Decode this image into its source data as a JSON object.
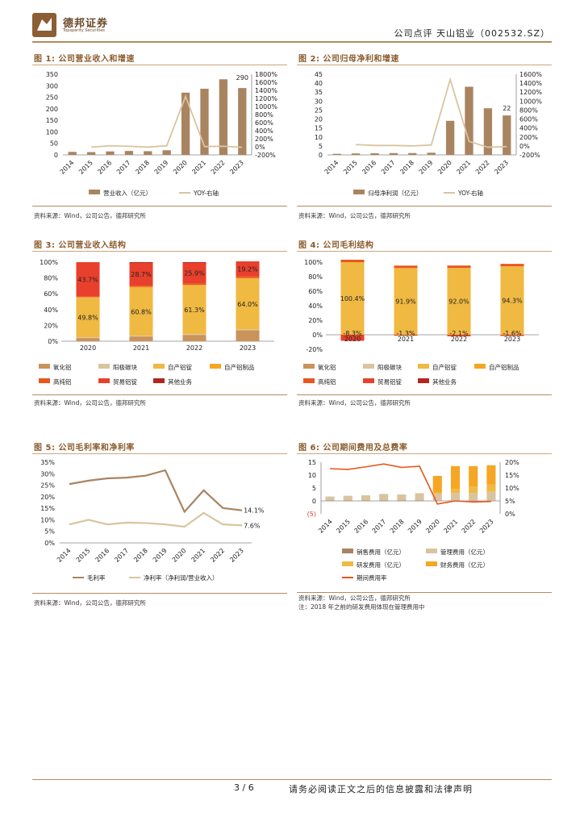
{
  "header": {
    "brand_cn": "德邦证券",
    "brand_en": "Topsperity Securities",
    "report": "公司点评 天山铝业（002532.SZ）"
  },
  "colors": {
    "brown": "#a98460",
    "beige": "#d9c4a0",
    "red": "#e8402c",
    "orange": "#f5a623",
    "gold": "#f0b942",
    "darkred": "#b3261e",
    "lightbrown": "#c9935a",
    "darkorange": "#e07a1a",
    "redorange": "#e8571c"
  },
  "figures": [
    {
      "title": "图 1: 公司营业收入和增速",
      "source": "资料来源：Wind，公司公告，德邦研究所"
    },
    {
      "title": "图 2: 公司归母净利和增速",
      "source": "资料来源：Wind，公司公告，德邦研究所"
    },
    {
      "title": "图 3: 公司营业收入结构",
      "source": "资料来源：Wind，公司公告，德邦研究所"
    },
    {
      "title": "图 4: 公司毛利结构",
      "source": "资料来源：Wind，公司公告，德邦研究所"
    },
    {
      "title": "图 5: 公司毛利率和净利率",
      "source": "资料来源：Wind，公司公告，德邦研究所"
    },
    {
      "title": "图 6: 公司期间费用及总费率",
      "source": "资料来源：Wind，公司公告，德邦研究所",
      "note": "注：2018 年之前的研发费用体现在管理费用中"
    }
  ],
  "chart_data": [
    {
      "type": "bar",
      "title": "公司营业收入和增速",
      "categories": [
        "2014",
        "2015",
        "2016",
        "2017",
        "2018",
        "2019",
        "2020",
        "2021",
        "2022",
        "2023"
      ],
      "series": [
        {
          "name": "营业收入（亿元）",
          "values": [
            13,
            12,
            15,
            17,
            16,
            20,
            270,
            287,
            328,
            290
          ]
        },
        {
          "name": "YOY-右轴",
          "values": [
            null,
            -8,
            25,
            13,
            -6,
            25,
            1250,
            6,
            14,
            -12
          ]
        }
      ],
      "ylim": [
        0,
        350
      ],
      "yticks": [
        "0",
        "50",
        "100",
        "150",
        "200",
        "250",
        "300",
        "350"
      ],
      "y2ticks": [
        "-200%",
        "0%",
        "200%",
        "400%",
        "600%",
        "800%",
        "1000%",
        "1200%",
        "1400%",
        "1600%",
        "1800%"
      ],
      "label_last": "290"
    },
    {
      "type": "bar",
      "title": "公司归母净利和增速",
      "categories": [
        "2014",
        "2015",
        "2016",
        "2017",
        "2018",
        "2019",
        "2020",
        "2021",
        "2022",
        "2023"
      ],
      "series": [
        {
          "name": "归母净利润（亿元）",
          "values": [
            0.6,
            0.8,
            0.9,
            1.0,
            1.0,
            1.2,
            19,
            38,
            26,
            22
          ]
        },
        {
          "name": "YOY-右轴",
          "values": [
            null,
            30,
            10,
            10,
            0,
            20,
            1480,
            100,
            -30,
            -15
          ]
        }
      ],
      "ylim": [
        0,
        45
      ],
      "yticks": [
        "0",
        "5",
        "10",
        "15",
        "20",
        "25",
        "30",
        "35",
        "40",
        "45"
      ],
      "y2ticks": [
        "-200%",
        "0%",
        "200%",
        "400%",
        "600%",
        "800%",
        "1000%",
        "1200%",
        "1400%",
        "1600%"
      ],
      "label_last": "22"
    },
    {
      "type": "bar",
      "title": "公司营业收入结构",
      "stacked": true,
      "categories": [
        "2020",
        "2021",
        "2022",
        "2023"
      ],
      "series": [
        {
          "name": "氧化铝",
          "values": [
            4,
            6,
            8,
            14
          ]
        },
        {
          "name": "阳极碳块",
          "values": [
            1,
            1,
            1,
            1
          ]
        },
        {
          "name": "自产铝锭",
          "values": [
            49.8,
            60.8,
            61.3,
            64.0
          ]
        },
        {
          "name": "自产铝制品",
          "values": [
            1,
            1,
            1,
            1
          ]
        },
        {
          "name": "高纯铝",
          "values": [
            0.5,
            1.5,
            1.8,
            1.8
          ]
        },
        {
          "name": "贸易铝锭",
          "values": [
            43.7,
            28.7,
            25.9,
            19.2
          ]
        },
        {
          "name": "其他业务",
          "values": [
            0,
            1,
            1,
            0
          ]
        }
      ],
      "labels": [
        [
          "43.7%",
          "49.8%"
        ],
        [
          "28.7%",
          "60.8%"
        ],
        [
          "25.9%",
          "61.3%"
        ],
        [
          "19.2%",
          "64.0%"
        ]
      ],
      "yticks": [
        "0%",
        "20%",
        "40%",
        "60%",
        "80%",
        "100%"
      ]
    },
    {
      "type": "bar",
      "title": "公司毛利结构",
      "stacked": true,
      "categories": [
        "2020",
        "2021",
        "2022",
        "2023"
      ],
      "series": [
        {
          "name": "自产铝锭",
          "values": [
            100.4,
            91.9,
            92.0,
            94.3
          ]
        },
        {
          "name": "贸易铝锭",
          "values": [
            -8.3,
            -1.3,
            -2.1,
            -1.6
          ]
        }
      ],
      "labels": [
        [
          "100.4%",
          "-8.3%"
        ],
        [
          "91.9%",
          "-1.3%"
        ],
        [
          "92.0%",
          "-2.1%"
        ],
        [
          "94.3%",
          "-1.6%"
        ]
      ],
      "legend": [
        "氧化铝",
        "阳极碳块",
        "自产铝锭",
        "自产铝制品",
        "高纯铝",
        "贸易铝锭",
        "其他业务"
      ],
      "yticks": [
        "-20%",
        "0%",
        "20%",
        "40%",
        "60%",
        "80%",
        "100%"
      ]
    },
    {
      "type": "line",
      "title": "公司毛利率和净利率",
      "categories": [
        "2014",
        "2015",
        "2016",
        "2017",
        "2018",
        "2019",
        "2020",
        "2021",
        "2022",
        "2023"
      ],
      "series": [
        {
          "name": "毛利率",
          "values": [
            25.5,
            27,
            28,
            28.3,
            29.2,
            31.5,
            13.5,
            22.8,
            15.1,
            14.1
          ]
        },
        {
          "name": "净利率（净利润/营业收入）",
          "values": [
            8,
            10,
            8,
            8.8,
            8.6,
            8,
            7,
            13,
            8,
            7.6
          ]
        }
      ],
      "labels": [
        "14.1%",
        "7.6%"
      ],
      "yticks": [
        "0%",
        "5%",
        "10%",
        "15%",
        "20%",
        "25%",
        "30%",
        "35%"
      ]
    },
    {
      "type": "bar",
      "title": "公司期间费用及总费率",
      "stacked": true,
      "categories": [
        "2014",
        "2015",
        "2016",
        "2017",
        "2018",
        "2019",
        "2020",
        "2021",
        "2022",
        "2023"
      ],
      "series": [
        {
          "name": "销售费用（亿元）",
          "values": [
            0.2,
            0.2,
            0.2,
            0.2,
            0.2,
            0.2,
            0.1,
            0.1,
            0.1,
            0.1
          ]
        },
        {
          "name": "管理费用（亿元）",
          "values": [
            1.5,
            1.8,
            2,
            2.5,
            2.3,
            2.7,
            2.7,
            3,
            3,
            3.4
          ]
        },
        {
          "name": "研发费用（亿元）",
          "values": [
            0,
            0,
            0,
            0,
            0,
            0.1,
            0.5,
            1.5,
            2.5,
            2.8
          ]
        },
        {
          "name": "财务费用（亿元）",
          "values": [
            0,
            0,
            0,
            0,
            0,
            0,
            6.4,
            8.9,
            7.9,
            7.5
          ]
        },
        {
          "name": "期间费用率",
          "values": [
            17.5,
            17.2,
            18.2,
            19.3,
            18,
            18.4,
            3.8,
            5,
            4.6,
            4.8
          ]
        }
      ],
      "yticks": [
        "(5)",
        "0",
        "5",
        "10",
        "15"
      ],
      "y2ticks": [
        "0%",
        "5%",
        "10%",
        "15%",
        "20%"
      ]
    }
  ],
  "footer": {
    "page": "3 / 6",
    "disclaimer": "请务必阅读正文之后的信息披露和法律声明"
  }
}
